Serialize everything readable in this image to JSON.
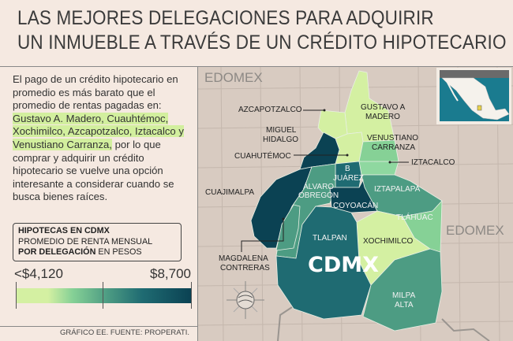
{
  "header": {
    "title_line1": "LAS MEJORES DELEGACIONES PARA ADQUIRIR",
    "title_line2": "UN INMUEBLE A TRAVÉS DE UN CRÉDITO HIPOTECARIO"
  },
  "intro": {
    "before": "El pago de un crédito hipotecario en promedio es más barato que el promedio de rentas pagadas en: ",
    "highlight": "Gustavo A. Madero, Cuauhtémoc, Xochimilco, Azcapotzalco, Iztacalco y Venustiano Carranza,",
    "after": " por lo que comprar y adquirir un crédito hipotecario se vuelve una opción interesante a considerar cuando se busca bienes raíces."
  },
  "legend": {
    "title": "HIPOTECAS EN CDMX",
    "subtitle": "PROMEDIO DE RENTA MENSUAL",
    "subtitle2_bold": "POR DELEGACIÓN",
    "subtitle2_rest": " EN PESOS",
    "min": "<$4,120",
    "max": "$8,700",
    "colors": [
      "#d4f0a2",
      "#86d196",
      "#4d9c83",
      "#1f6b72",
      "#0b4253"
    ]
  },
  "source": "GRÁFICO EE. FUENTE: PROPERATI.",
  "map": {
    "region_left": "EDOMEX",
    "region_right": "EDOMEX",
    "city": "CDMX",
    "districts": {
      "gam": {
        "label1": "GUSTAVO A",
        "label2": "MADERO",
        "color": "#d4f0a2"
      },
      "azcapotzalco": {
        "label": "AZCAPOTZALCO",
        "color": "#d4f0a2"
      },
      "miguel_hidalgo": {
        "label1": "MIGUEL",
        "label2": "HIDALGO",
        "color": "#0b4253"
      },
      "cuauhtemoc": {
        "label": "CUAHUTÉMOC",
        "color": "#d4f0a2"
      },
      "venustiano": {
        "label1": "VENUSTIANO",
        "label2": "CARRANZA",
        "color": "#86d196"
      },
      "iztacalco": {
        "label": "IZTACALCO",
        "color": "#8fd8a0"
      },
      "benito_juarez": {
        "label1": "B",
        "label2": "JUÁREZ",
        "color": "#1f6b72"
      },
      "cuajimalpa": {
        "label": "CUAJIMALPA",
        "color": "#0b4253"
      },
      "alvaro_obregon": {
        "label1": "ÁLVARO",
        "label2": "OBREGÓN",
        "color": "#4d9c83"
      },
      "coyoacan": {
        "label": "COYOACÁN",
        "color": "#0b4253"
      },
      "iztapalapa": {
        "label": "IZTAPALAPA",
        "color": "#4d9c83"
      },
      "tlahuac": {
        "label": "TLÁHUAC",
        "color": "#86d196"
      },
      "xochimilco": {
        "label": "XOCHIMILCO",
        "color": "#d4f0a2"
      },
      "tlalpan": {
        "label": "TLALPAN",
        "color": "#1f6b72"
      },
      "magdalena": {
        "label1": "MAGDALENA",
        "label2": "CONTRERAS",
        "color": "#4d9c83"
      },
      "milpa_alta": {
        "label1": "MILPA",
        "label2": "ALTA",
        "color": "#4d9c83"
      }
    }
  }
}
